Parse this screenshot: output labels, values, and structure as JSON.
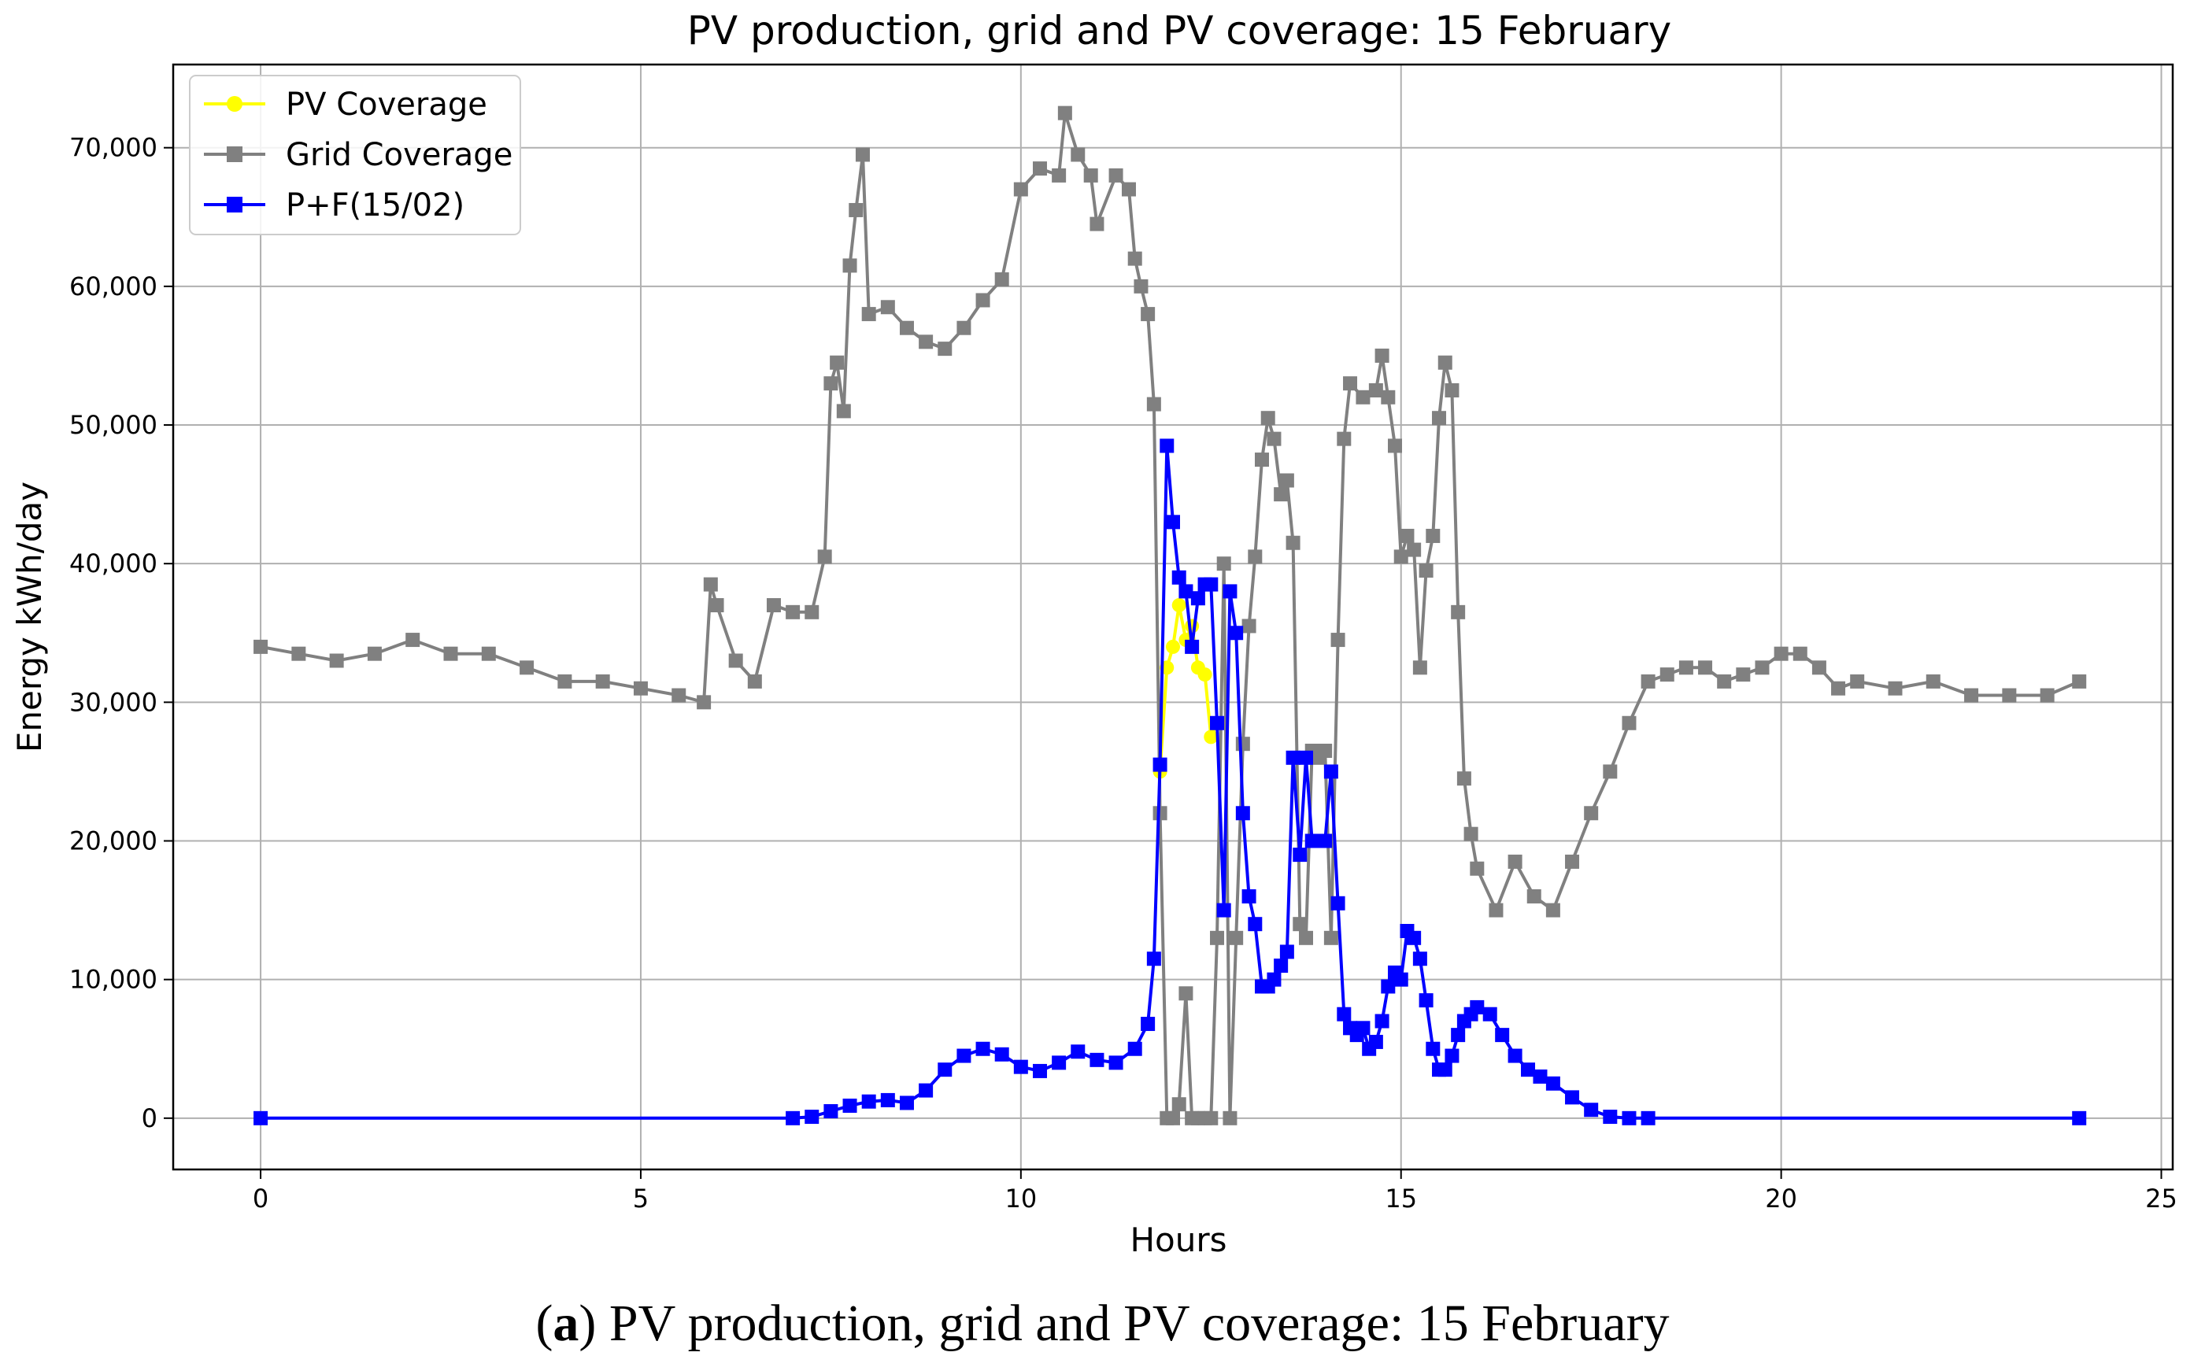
{
  "chart_data": {
    "type": "line",
    "title": "PV production, grid and PV coverage: 15 February",
    "xlabel": "Hours",
    "ylabel": "Energy kWh/day",
    "xlim": [
      -1.15,
      25.15
    ],
    "ylim": [
      -3700,
      76000
    ],
    "xticks": [
      0,
      5,
      10,
      15,
      20,
      25
    ],
    "yticks": [
      0,
      10000,
      20000,
      30000,
      40000,
      50000,
      60000,
      70000
    ],
    "ytick_labels": [
      "0",
      "10,000",
      "20,000",
      "30,000",
      "40,000",
      "50,000",
      "60,000",
      "70,000"
    ],
    "grid": true,
    "legend_position": "top-left",
    "series": [
      {
        "name": "PV Coverage",
        "color": "#ffff00",
        "marker": "circle",
        "x": [
          11.83,
          11.92,
          12.0,
          12.08,
          12.17,
          12.25,
          12.33,
          12.42,
          12.5,
          12.58
        ],
        "y": [
          25000,
          32500,
          34000,
          37000,
          34500,
          35500,
          32500,
          32000,
          27500,
          28500
        ]
      },
      {
        "name": "Grid Coverage",
        "color": "#808080",
        "marker": "square",
        "x": [
          0.0,
          0.5,
          1.0,
          1.5,
          2.0,
          2.5,
          3.0,
          3.5,
          4.0,
          4.5,
          5.0,
          5.5,
          5.83,
          5.92,
          6.0,
          6.25,
          6.5,
          6.75,
          7.0,
          7.25,
          7.42,
          7.5,
          7.58,
          7.67,
          7.75,
          7.83,
          7.92,
          8.0,
          8.25,
          8.5,
          8.75,
          9.0,
          9.25,
          9.5,
          9.75,
          10.0,
          10.25,
          10.5,
          10.58,
          10.75,
          10.92,
          11.0,
          11.25,
          11.42,
          11.5,
          11.58,
          11.67,
          11.75,
          11.83,
          11.92,
          12.0,
          12.08,
          12.17,
          12.25,
          12.33,
          12.42,
          12.5,
          12.58,
          12.67,
          12.75,
          12.83,
          12.92,
          13.0,
          13.08,
          13.17,
          13.25,
          13.33,
          13.42,
          13.5,
          13.58,
          13.67,
          13.75,
          13.83,
          13.92,
          14.0,
          14.08,
          14.17,
          14.25,
          14.33,
          14.5,
          14.67,
          14.75,
          14.83,
          14.92,
          15.0,
          15.08,
          15.17,
          15.25,
          15.33,
          15.42,
          15.5,
          15.58,
          15.67,
          15.75,
          15.83,
          15.92,
          16.0,
          16.25,
          16.5,
          16.75,
          17.0,
          17.25,
          17.5,
          17.75,
          18.0,
          18.25,
          18.5,
          18.75,
          19.0,
          19.25,
          19.5,
          19.75,
          20.0,
          20.25,
          20.5,
          20.75,
          21.0,
          21.5,
          22.0,
          22.5,
          23.0,
          23.5,
          23.92
        ],
        "y": [
          34000,
          33500,
          33000,
          33500,
          34500,
          33500,
          33500,
          32500,
          31500,
          31500,
          31000,
          30500,
          30000,
          38500,
          37000,
          33000,
          31500,
          37000,
          36500,
          36500,
          40500,
          53000,
          54500,
          51000,
          61500,
          65500,
          69500,
          58000,
          58500,
          57000,
          56000,
          55500,
          57000,
          59000,
          60500,
          67000,
          68500,
          68000,
          72500,
          69500,
          68000,
          64500,
          68000,
          67000,
          62000,
          60000,
          58000,
          51500,
          22000,
          0,
          0,
          1000,
          9000,
          0,
          0,
          0,
          0,
          13000,
          40000,
          0,
          13000,
          27000,
          35500,
          40500,
          47500,
          50500,
          49000,
          45000,
          46000,
          41500,
          14000,
          13000,
          26500,
          26000,
          26500,
          13000,
          34500,
          49000,
          53000,
          52000,
          52500,
          55000,
          52000,
          48500,
          40500,
          42000,
          41000,
          32500,
          39500,
          42000,
          50500,
          54500,
          52500,
          36500,
          24500,
          20500,
          18000,
          15000,
          18500,
          16000,
          15000,
          18500,
          22000,
          25000,
          28500,
          31500,
          32000,
          32500,
          32500,
          31500,
          32000,
          32500,
          33500,
          33500,
          32500,
          31000,
          31500,
          31000,
          31500,
          30500,
          30500,
          30500,
          31500
        ]
      },
      {
        "name": "P+F(15/02)",
        "color": "#0000ff",
        "marker": "square",
        "x": [
          0.0,
          7.0,
          7.25,
          7.5,
          7.75,
          8.0,
          8.25,
          8.5,
          8.75,
          9.0,
          9.25,
          9.5,
          9.75,
          10.0,
          10.25,
          10.5,
          10.75,
          11.0,
          11.25,
          11.5,
          11.67,
          11.75,
          11.83,
          11.92,
          12.0,
          12.08,
          12.17,
          12.25,
          12.33,
          12.42,
          12.5,
          12.58,
          12.67,
          12.75,
          12.83,
          12.92,
          13.0,
          13.08,
          13.17,
          13.25,
          13.33,
          13.42,
          13.5,
          13.58,
          13.67,
          13.75,
          13.83,
          13.92,
          14.0,
          14.08,
          14.17,
          14.25,
          14.33,
          14.42,
          14.5,
          14.58,
          14.67,
          14.75,
          14.83,
          14.92,
          15.0,
          15.08,
          15.17,
          15.25,
          15.33,
          15.42,
          15.5,
          15.58,
          15.67,
          15.75,
          15.83,
          15.92,
          16.0,
          16.17,
          16.33,
          16.5,
          16.67,
          16.83,
          17.0,
          17.25,
          17.5,
          17.75,
          18.0,
          18.25,
          23.92
        ],
        "y": [
          0,
          0,
          100,
          500,
          900,
          1200,
          1300,
          1100,
          2000,
          3500,
          4500,
          5000,
          4600,
          3700,
          3400,
          4000,
          4800,
          4200,
          4000,
          5000,
          6800,
          11500,
          25500,
          48500,
          43000,
          39000,
          38000,
          34000,
          37500,
          38500,
          38500,
          28500,
          15000,
          38000,
          35000,
          22000,
          16000,
          14000,
          9500,
          9500,
          10000,
          11000,
          12000,
          26000,
          19000,
          26000,
          20000,
          20000,
          20000,
          25000,
          15500,
          7500,
          6500,
          6000,
          6500,
          5000,
          5500,
          7000,
          9500,
          10500,
          10000,
          13500,
          13000,
          11500,
          8500,
          5000,
          3500,
          3500,
          4500,
          6000,
          7000,
          7500,
          8000,
          7500,
          6000,
          4500,
          3500,
          3000,
          2500,
          1500,
          600,
          100,
          0,
          0,
          0
        ]
      }
    ]
  },
  "caption": {
    "label": "a",
    "open": "(",
    "close": ")",
    "text": " PV production, grid and PV coverage: 15 February"
  }
}
